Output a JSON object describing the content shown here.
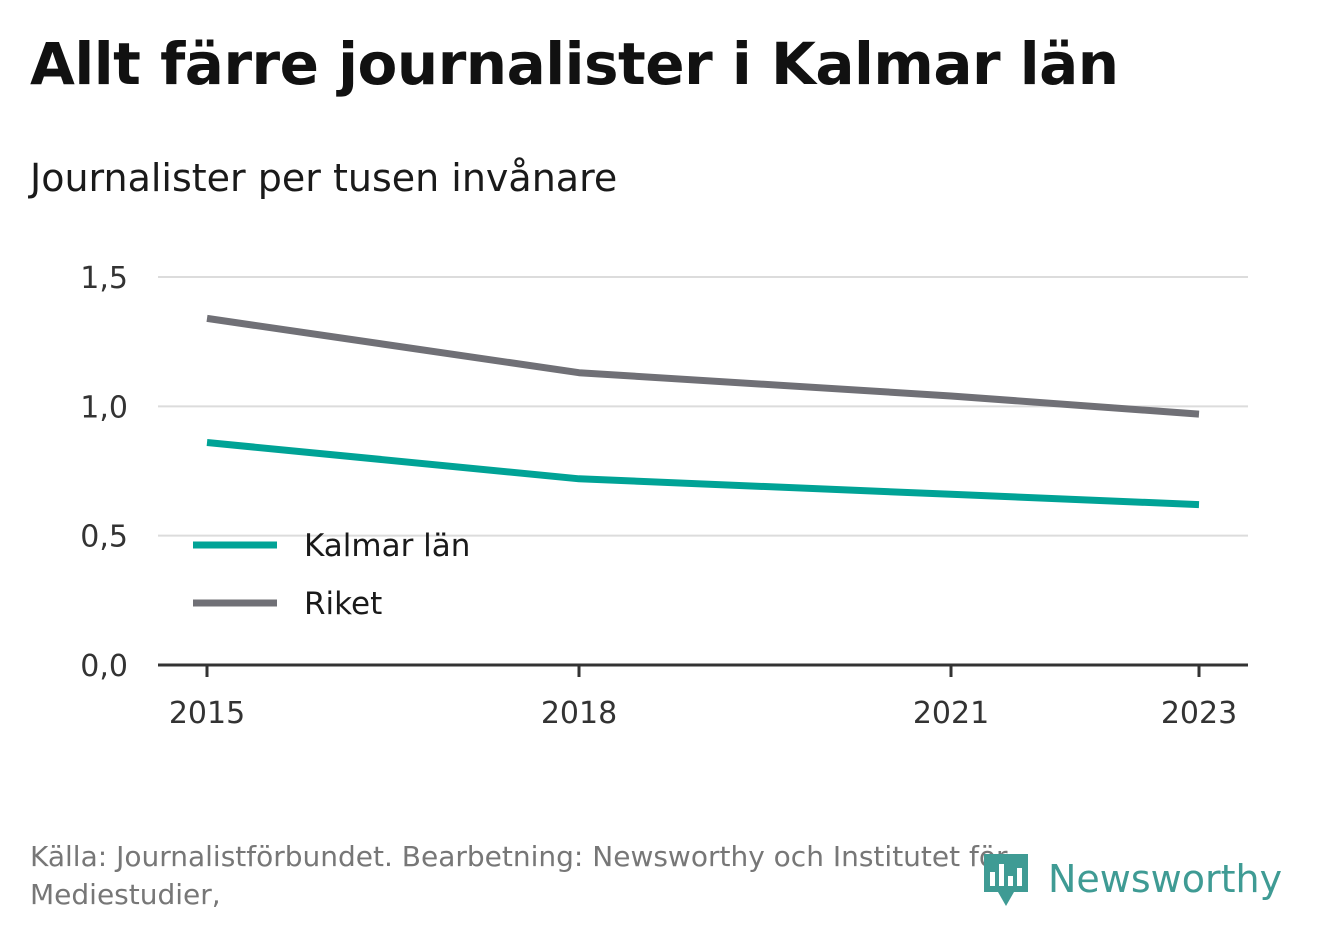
{
  "title": "Allt färre journalister i Kalmar län",
  "subtitle": "Journalister per tusen invånare",
  "chart_data": {
    "type": "line",
    "x": [
      2015,
      2018,
      2021,
      2023
    ],
    "x_tick_labels": [
      "2015",
      "2018",
      "2021",
      "2023"
    ],
    "y_tick_values": [
      0,
      0.5,
      1.0,
      1.5
    ],
    "y_tick_labels": [
      "0,0",
      "0,5",
      "1,0",
      "1,5"
    ],
    "ylim": [
      0,
      1.5
    ],
    "xlim": [
      2015,
      2023
    ],
    "grid": true,
    "legend_position": "bottom-left",
    "series": [
      {
        "name": "Kalmar län",
        "color": "#00a396",
        "values": [
          0.86,
          0.72,
          0.66,
          0.62
        ]
      },
      {
        "name": "Riket",
        "color": "#707076",
        "values": [
          1.34,
          1.13,
          1.04,
          0.97
        ]
      }
    ]
  },
  "source": "Källa: Journalistförbundet. Bearbetning: Newsworthy och Institutet för Mediestudier,",
  "logo": {
    "text": "Newsworthy",
    "icon": "newsworthy-logo-icon",
    "color": "#3f9b94"
  }
}
